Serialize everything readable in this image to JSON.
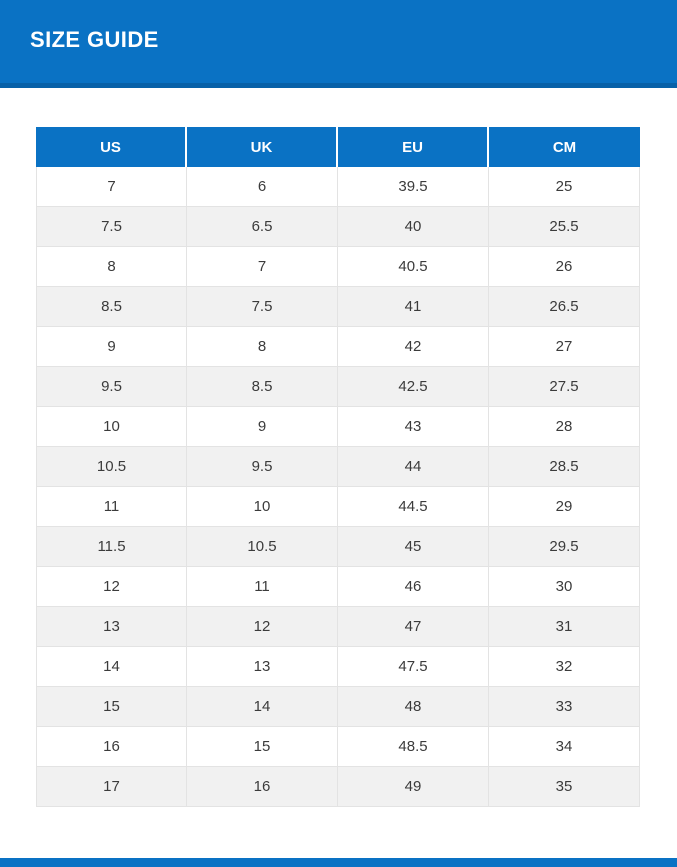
{
  "header": {
    "title": "SIZE GUIDE"
  },
  "colors": {
    "accent_blue": "#0a72c4",
    "accent_blue_dark": "#0666ae",
    "row_alt_bg": "#f1f1f1",
    "row_bg": "#ffffff",
    "grid_line": "#e3e3e3",
    "cell_text": "#3b3b3b",
    "header_text": "#ffffff"
  },
  "size_table": {
    "columns": [
      "US",
      "UK",
      "EU",
      "CM"
    ],
    "rows": [
      [
        "7",
        "6",
        "39.5",
        "25"
      ],
      [
        "7.5",
        "6.5",
        "40",
        "25.5"
      ],
      [
        "8",
        "7",
        "40.5",
        "26"
      ],
      [
        "8.5",
        "7.5",
        "41",
        "26.5"
      ],
      [
        "9",
        "8",
        "42",
        "27"
      ],
      [
        "9.5",
        "8.5",
        "42.5",
        "27.5"
      ],
      [
        "10",
        "9",
        "43",
        "28"
      ],
      [
        "10.5",
        "9.5",
        "44",
        "28.5"
      ],
      [
        "11",
        "10",
        "44.5",
        "29"
      ],
      [
        "11.5",
        "10.5",
        "45",
        "29.5"
      ],
      [
        "12",
        "11",
        "46",
        "30"
      ],
      [
        "13",
        "12",
        "47",
        "31"
      ],
      [
        "14",
        "13",
        "47.5",
        "32"
      ],
      [
        "15",
        "14",
        "48",
        "33"
      ],
      [
        "16",
        "15",
        "48.5",
        "34"
      ],
      [
        "17",
        "16",
        "49",
        "35"
      ]
    ]
  }
}
